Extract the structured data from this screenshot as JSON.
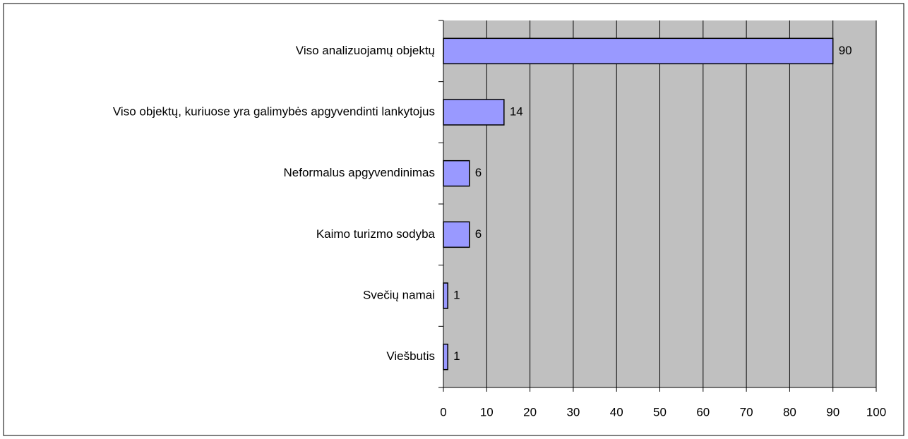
{
  "chart_data": {
    "type": "bar",
    "orientation": "horizontal",
    "categories": [
      "Viso analizuojamų objektų",
      "Viso objektų, kuriuose yra galimybės apgyvendinti lankytojus",
      "Neformalus apgyvendinimas",
      "Kaimo turizmo sodyba",
      "Svečių namai",
      "Viešbutis"
    ],
    "values": [
      90,
      14,
      6,
      6,
      1,
      1
    ],
    "color": "#9999ff",
    "xlim": [
      0,
      100
    ],
    "xticks": [
      0,
      10,
      20,
      30,
      40,
      50,
      60,
      70,
      80,
      90,
      100
    ],
    "grid": true
  }
}
